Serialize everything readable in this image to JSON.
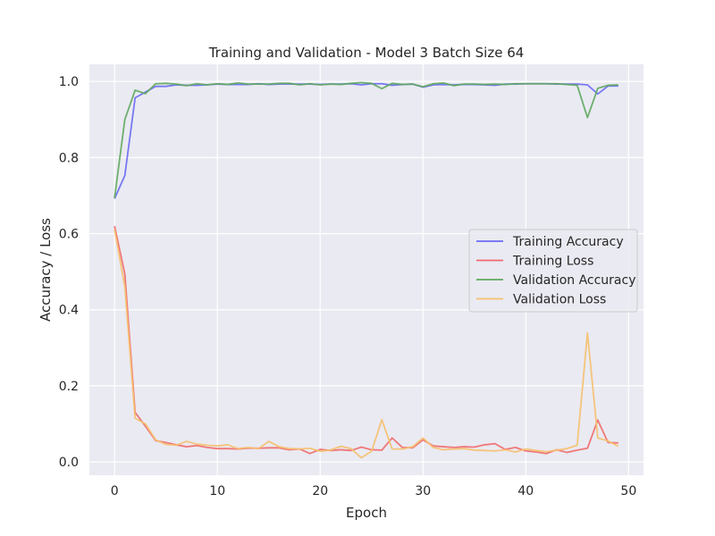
{
  "chart_data": {
    "type": "line",
    "title": "Training and Validation - Model 3 Batch Size 64",
    "xlabel": "Epoch",
    "ylabel": "Accuracy / Loss",
    "xlim": [
      -2.45,
      51.45
    ],
    "ylim": [
      -0.035,
      1.045
    ],
    "xticks": [
      0,
      10,
      20,
      30,
      40,
      50
    ],
    "yticks": [
      0.0,
      0.2,
      0.4,
      0.6,
      0.8,
      1.0
    ],
    "xtick_labels": [
      "0",
      "10",
      "20",
      "30",
      "40",
      "50"
    ],
    "ytick_labels": [
      "0.0",
      "0.2",
      "0.4",
      "0.6",
      "0.8",
      "1.0"
    ],
    "grid": true,
    "legend_position": "center-right",
    "x": [
      0,
      1,
      2,
      3,
      4,
      5,
      6,
      7,
      8,
      9,
      10,
      11,
      12,
      13,
      14,
      15,
      16,
      17,
      18,
      19,
      20,
      21,
      22,
      23,
      24,
      25,
      26,
      27,
      28,
      29,
      30,
      31,
      32,
      33,
      34,
      35,
      36,
      37,
      38,
      39,
      40,
      41,
      42,
      43,
      44,
      45,
      46,
      47,
      48,
      49
    ],
    "series": [
      {
        "name": "Training Accuracy",
        "color": "#6b6bf3",
        "values": [
          0.692,
          0.753,
          0.957,
          0.972,
          0.987,
          0.987,
          0.991,
          0.99,
          0.99,
          0.991,
          0.993,
          0.992,
          0.992,
          0.992,
          0.994,
          0.992,
          0.993,
          0.993,
          0.993,
          0.993,
          0.992,
          0.993,
          0.993,
          0.994,
          0.991,
          0.994,
          0.994,
          0.99,
          0.992,
          0.993,
          0.985,
          0.991,
          0.992,
          0.991,
          0.992,
          0.992,
          0.991,
          0.99,
          0.993,
          0.993,
          0.994,
          0.994,
          0.994,
          0.993,
          0.993,
          0.993,
          0.991,
          0.967,
          0.988,
          0.988
        ]
      },
      {
        "name": "Training Loss",
        "color": "#f06b6b",
        "values": [
          0.62,
          0.494,
          0.13,
          0.094,
          0.056,
          0.051,
          0.045,
          0.04,
          0.043,
          0.038,
          0.035,
          0.035,
          0.034,
          0.036,
          0.036,
          0.037,
          0.037,
          0.032,
          0.034,
          0.022,
          0.033,
          0.03,
          0.032,
          0.03,
          0.039,
          0.032,
          0.031,
          0.063,
          0.038,
          0.037,
          0.058,
          0.042,
          0.04,
          0.038,
          0.04,
          0.039,
          0.045,
          0.048,
          0.033,
          0.038,
          0.029,
          0.026,
          0.022,
          0.032,
          0.025,
          0.031,
          0.036,
          0.11,
          0.051,
          0.05
        ]
      },
      {
        "name": "Validation Accuracy",
        "color": "#5fa85f",
        "values": [
          0.694,
          0.9,
          0.977,
          0.968,
          0.994,
          0.995,
          0.993,
          0.989,
          0.994,
          0.991,
          0.994,
          0.992,
          0.996,
          0.993,
          0.993,
          0.993,
          0.995,
          0.995,
          0.991,
          0.994,
          0.991,
          0.993,
          0.992,
          0.995,
          0.997,
          0.995,
          0.981,
          0.995,
          0.992,
          0.993,
          0.986,
          0.994,
          0.996,
          0.989,
          0.993,
          0.993,
          0.992,
          0.993,
          0.992,
          0.994,
          0.994,
          0.994,
          0.994,
          0.994,
          0.992,
          0.99,
          0.905,
          0.982,
          0.99,
          0.991
        ]
      },
      {
        "name": "Validation Loss",
        "color": "#f6c06e",
        "values": [
          0.611,
          0.46,
          0.115,
          0.1,
          0.058,
          0.046,
          0.044,
          0.054,
          0.047,
          0.044,
          0.042,
          0.045,
          0.035,
          0.038,
          0.035,
          0.054,
          0.04,
          0.035,
          0.034,
          0.036,
          0.028,
          0.031,
          0.041,
          0.035,
          0.011,
          0.028,
          0.111,
          0.034,
          0.034,
          0.04,
          0.063,
          0.038,
          0.032,
          0.034,
          0.035,
          0.031,
          0.03,
          0.029,
          0.032,
          0.026,
          0.034,
          0.03,
          0.027,
          0.031,
          0.035,
          0.044,
          0.339,
          0.063,
          0.055,
          0.041
        ]
      }
    ]
  }
}
